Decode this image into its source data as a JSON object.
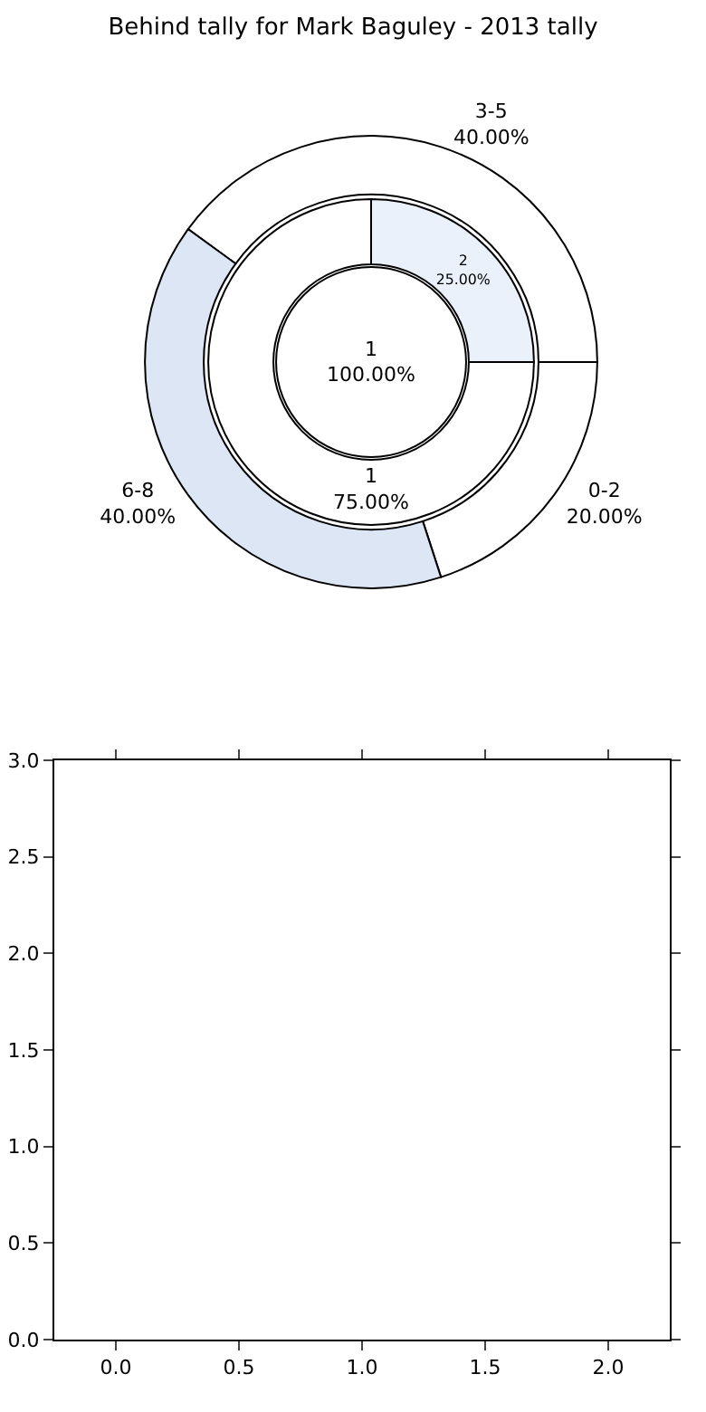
{
  "chart_data": [
    {
      "type": "donut",
      "title": "Behind tally for Mark Baguley - 2013 tally",
      "categories": [
        "0-2",
        "3-5",
        "6-8"
      ],
      "values": [
        20,
        40,
        40
      ],
      "value_labels": [
        "20.00%",
        "40.00%",
        "40.00%"
      ],
      "colors": [
        "#ffffff",
        "#ffffff",
        "#dce6f5"
      ]
    },
    {
      "type": "donut",
      "categories": [
        "1",
        "2"
      ],
      "values": [
        75,
        25
      ],
      "value_labels": [
        "75.00%",
        "25.00%"
      ],
      "colors": [
        "#ffffff",
        "#eaf1fb"
      ]
    },
    {
      "type": "pie",
      "categories": [
        "1"
      ],
      "values": [
        100
      ],
      "value_labels": [
        "100.00%"
      ],
      "colors": [
        "#ffffff"
      ]
    },
    {
      "type": "scatter",
      "xlim": [
        -0.25,
        2.25
      ],
      "ylim": [
        0,
        3
      ],
      "xticks": [
        {
          "value": 0,
          "label": "0.0"
        },
        {
          "value": 0.5,
          "label": "0.5"
        },
        {
          "value": 1,
          "label": "1.0"
        },
        {
          "value": 1.5,
          "label": "1.5"
        },
        {
          "value": 2,
          "label": "2.0"
        }
      ],
      "yticks": [
        {
          "value": 0,
          "label": "0.0"
        },
        {
          "value": 0.5,
          "label": "0.5"
        },
        {
          "value": 1,
          "label": "1.0"
        },
        {
          "value": 1.5,
          "label": "1.5"
        },
        {
          "value": 2,
          "label": "2.0"
        },
        {
          "value": 2.5,
          "label": "2.5"
        },
        {
          "value": 3,
          "label": "3.0"
        }
      ]
    }
  ]
}
